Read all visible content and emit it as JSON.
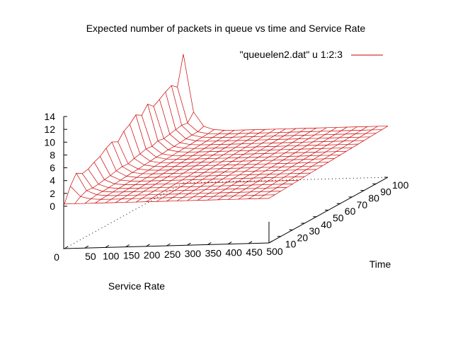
{
  "chart_data": {
    "type": "surface",
    "title": "Expected number of packets in queue vs time and Service Rate",
    "xlabel": "Service Rate",
    "ylabel": "Time",
    "zlabel": "",
    "legend": {
      "label": "\"queuelen2.dat\" u 1:2:3",
      "position": "top-right",
      "color": "#cc0000"
    },
    "xlim": [
      0,
      500
    ],
    "ylim": [
      0,
      100
    ],
    "zlim": [
      0,
      14
    ],
    "x_ticks": [
      "0",
      "50",
      "100",
      "150",
      "200",
      "250",
      "300",
      "350",
      "400",
      "450",
      "500"
    ],
    "y_ticks": [
      "10",
      "20",
      "30",
      "40",
      "50",
      "60",
      "70",
      "80",
      "90",
      "100"
    ],
    "z_ticks": [
      "0",
      "2",
      "4",
      "6",
      "8",
      "10",
      "12",
      "14"
    ],
    "x": [
      0,
      25,
      50,
      75,
      100,
      125,
      150,
      175,
      200,
      225,
      250,
      275,
      300,
      325,
      350,
      375,
      400,
      425,
      450,
      475,
      500
    ],
    "y": [
      0,
      5,
      10,
      15,
      20,
      25,
      30,
      35,
      40,
      45,
      50,
      55,
      60,
      65,
      70,
      75,
      80,
      85,
      90,
      95,
      100
    ],
    "peaks_at_low_service_rate": {
      "times": [
        0,
        5,
        10,
        15,
        20,
        25,
        30,
        35,
        40,
        45,
        50,
        55,
        60,
        65,
        70,
        75,
        80,
        85,
        90,
        95,
        100
      ],
      "values": [
        0.6,
        3.0,
        4.6,
        4.0,
        4.2,
        4.8,
        5.2,
        6.0,
        6.5,
        6.0,
        7.2,
        7.8,
        8.8,
        8.2,
        9.5,
        8.6,
        9.2,
        9.9,
        10.4,
        9.6,
        14.5
      ]
    }
  }
}
